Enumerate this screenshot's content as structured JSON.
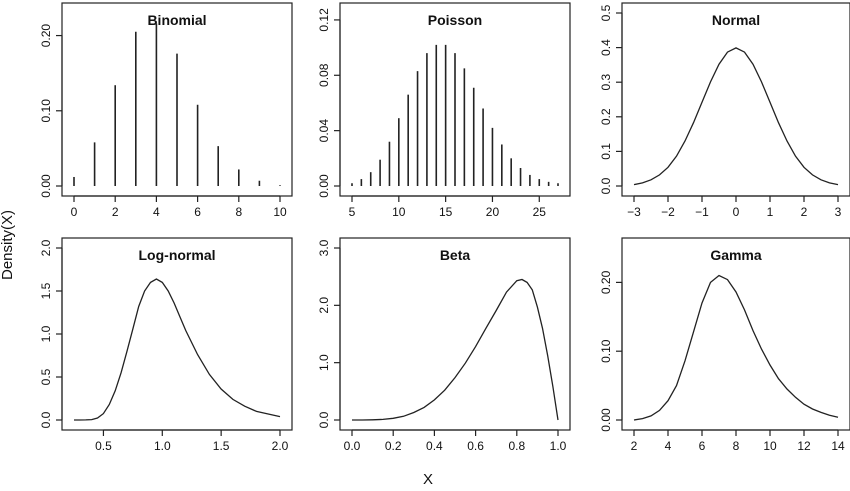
{
  "figure": {
    "xlabel": "X",
    "ylabel": "Density(X)"
  },
  "chart_data": [
    {
      "type": "bar",
      "title": "Binomial",
      "xlabel": "",
      "ylabel": "",
      "xlim": [
        0,
        10
      ],
      "ylim": [
        0,
        0.23
      ],
      "xticks": [
        0,
        2,
        4,
        6,
        8,
        10
      ],
      "yticks": [
        0.0,
        0.1,
        0.2
      ],
      "ytick_labels": [
        "0.00",
        "0.10",
        "0.20"
      ],
      "x": [
        0,
        1,
        2,
        3,
        4,
        5,
        6,
        7,
        8,
        9,
        10
      ],
      "values": [
        0.012,
        0.058,
        0.134,
        0.205,
        0.216,
        0.176,
        0.108,
        0.053,
        0.022,
        0.007,
        0.001
      ]
    },
    {
      "type": "bar",
      "title": "Poisson",
      "xlabel": "",
      "ylabel": "",
      "xlim": [
        5,
        27
      ],
      "ylim": [
        0,
        0.125
      ],
      "xticks": [
        5,
        10,
        15,
        20,
        25
      ],
      "yticks": [
        0.0,
        0.04,
        0.08,
        0.12
      ],
      "ytick_labels": [
        "0.00",
        "0.04",
        "0.08",
        "0.12"
      ],
      "x": [
        5,
        6,
        7,
        8,
        9,
        10,
        11,
        12,
        13,
        14,
        15,
        16,
        17,
        18,
        19,
        20,
        21,
        22,
        23,
        24,
        25,
        26,
        27
      ],
      "values": [
        0.002,
        0.005,
        0.01,
        0.019,
        0.032,
        0.049,
        0.066,
        0.083,
        0.096,
        0.102,
        0.102,
        0.096,
        0.085,
        0.071,
        0.056,
        0.042,
        0.03,
        0.02,
        0.013,
        0.008,
        0.005,
        0.003,
        0.002
      ]
    },
    {
      "type": "line",
      "title": "Normal",
      "xlabel": "",
      "ylabel": "",
      "xlim": [
        -3,
        3
      ],
      "ylim": [
        0,
        0.5
      ],
      "xticks": [
        -3,
        -2,
        -1,
        0,
        1,
        2,
        3
      ],
      "xtick_labels": [
        "−3",
        "−2",
        "−1",
        "0",
        "1",
        "2",
        "3"
      ],
      "yticks": [
        0.0,
        0.1,
        0.2,
        0.3,
        0.4,
        0.5
      ],
      "ytick_labels": [
        "0.0",
        "0.1",
        "0.2",
        "0.3",
        "0.4",
        "0.5"
      ],
      "x": [
        -3,
        -2.75,
        -2.5,
        -2.25,
        -2,
        -1.75,
        -1.5,
        -1.25,
        -1,
        -0.75,
        -0.5,
        -0.25,
        0,
        0.25,
        0.5,
        0.75,
        1,
        1.25,
        1.5,
        1.75,
        2,
        2.25,
        2.5,
        2.75,
        3
      ],
      "y": [
        0.004,
        0.009,
        0.018,
        0.032,
        0.054,
        0.086,
        0.13,
        0.183,
        0.242,
        0.301,
        0.352,
        0.387,
        0.399,
        0.387,
        0.352,
        0.301,
        0.242,
        0.183,
        0.13,
        0.086,
        0.054,
        0.032,
        0.018,
        0.009,
        0.004
      ]
    },
    {
      "type": "line",
      "title": "Log-normal",
      "xlabel": "",
      "ylabel": "",
      "xlim": [
        0.25,
        2.0
      ],
      "ylim": [
        0,
        2.0
      ],
      "xticks": [
        0.5,
        1.0,
        1.5,
        2.0
      ],
      "xtick_labels": [
        "0.5",
        "1.0",
        "1.5",
        "2.0"
      ],
      "yticks": [
        0.0,
        0.5,
        1.0,
        1.5,
        2.0
      ],
      "ytick_labels": [
        "0.0",
        "0.5",
        "1.0",
        "1.5",
        "2.0"
      ],
      "x": [
        0.25,
        0.3,
        0.35,
        0.4,
        0.45,
        0.5,
        0.55,
        0.6,
        0.65,
        0.7,
        0.75,
        0.8,
        0.85,
        0.9,
        0.95,
        1.0,
        1.05,
        1.1,
        1.15,
        1.2,
        1.3,
        1.4,
        1.5,
        1.6,
        1.7,
        1.8,
        1.9,
        2.0
      ],
      "y": [
        0.0,
        0.0,
        0.001,
        0.005,
        0.023,
        0.075,
        0.18,
        0.34,
        0.55,
        0.8,
        1.06,
        1.32,
        1.5,
        1.6,
        1.64,
        1.6,
        1.5,
        1.36,
        1.2,
        1.04,
        0.76,
        0.53,
        0.36,
        0.24,
        0.16,
        0.1,
        0.07,
        0.04
      ]
    },
    {
      "type": "line",
      "title": "Beta",
      "xlabel": "",
      "ylabel": "",
      "xlim": [
        0,
        1.0
      ],
      "ylim": [
        0,
        3.0
      ],
      "xticks": [
        0.0,
        0.2,
        0.4,
        0.6,
        0.8,
        1.0
      ],
      "xtick_labels": [
        "0.0",
        "0.2",
        "0.4",
        "0.6",
        "0.8",
        "1.0"
      ],
      "yticks": [
        0.0,
        1.0,
        2.0,
        3.0
      ],
      "ytick_labels": [
        "0.0",
        "1.0",
        "2.0",
        "3.0"
      ],
      "x": [
        0.0,
        0.05,
        0.1,
        0.15,
        0.2,
        0.25,
        0.3,
        0.35,
        0.4,
        0.45,
        0.5,
        0.55,
        0.6,
        0.65,
        0.7,
        0.75,
        0.8,
        0.825,
        0.85,
        0.875,
        0.9,
        0.925,
        0.95,
        0.975,
        1.0
      ],
      "y": [
        0.0,
        0.0,
        0.003,
        0.01,
        0.03,
        0.065,
        0.13,
        0.22,
        0.35,
        0.52,
        0.74,
        0.99,
        1.28,
        1.6,
        1.91,
        2.23,
        2.43,
        2.45,
        2.4,
        2.27,
        1.97,
        1.6,
        1.12,
        0.58,
        0.0
      ]
    },
    {
      "type": "line",
      "title": "Gamma",
      "xlabel": "",
      "ylabel": "",
      "xlim": [
        2,
        14
      ],
      "ylim": [
        0,
        0.25
      ],
      "xticks": [
        2,
        4,
        6,
        8,
        10,
        12,
        14
      ],
      "xtick_labels": [
        "2",
        "4",
        "6",
        "8",
        "10",
        "12",
        "14"
      ],
      "yticks": [
        0.0,
        0.1,
        0.2
      ],
      "ytick_labels": [
        "0.00",
        "0.10",
        "0.20"
      ],
      "x": [
        2,
        2.5,
        3,
        3.5,
        4,
        4.5,
        5,
        5.5,
        6,
        6.5,
        7,
        7.5,
        8,
        8.5,
        9,
        9.5,
        10,
        10.5,
        11,
        11.5,
        12,
        12.5,
        13,
        13.5,
        14
      ],
      "y": [
        0.0,
        0.002,
        0.006,
        0.014,
        0.028,
        0.05,
        0.086,
        0.128,
        0.17,
        0.2,
        0.21,
        0.204,
        0.186,
        0.16,
        0.13,
        0.103,
        0.08,
        0.06,
        0.045,
        0.033,
        0.023,
        0.016,
        0.011,
        0.007,
        0.004
      ]
    }
  ]
}
